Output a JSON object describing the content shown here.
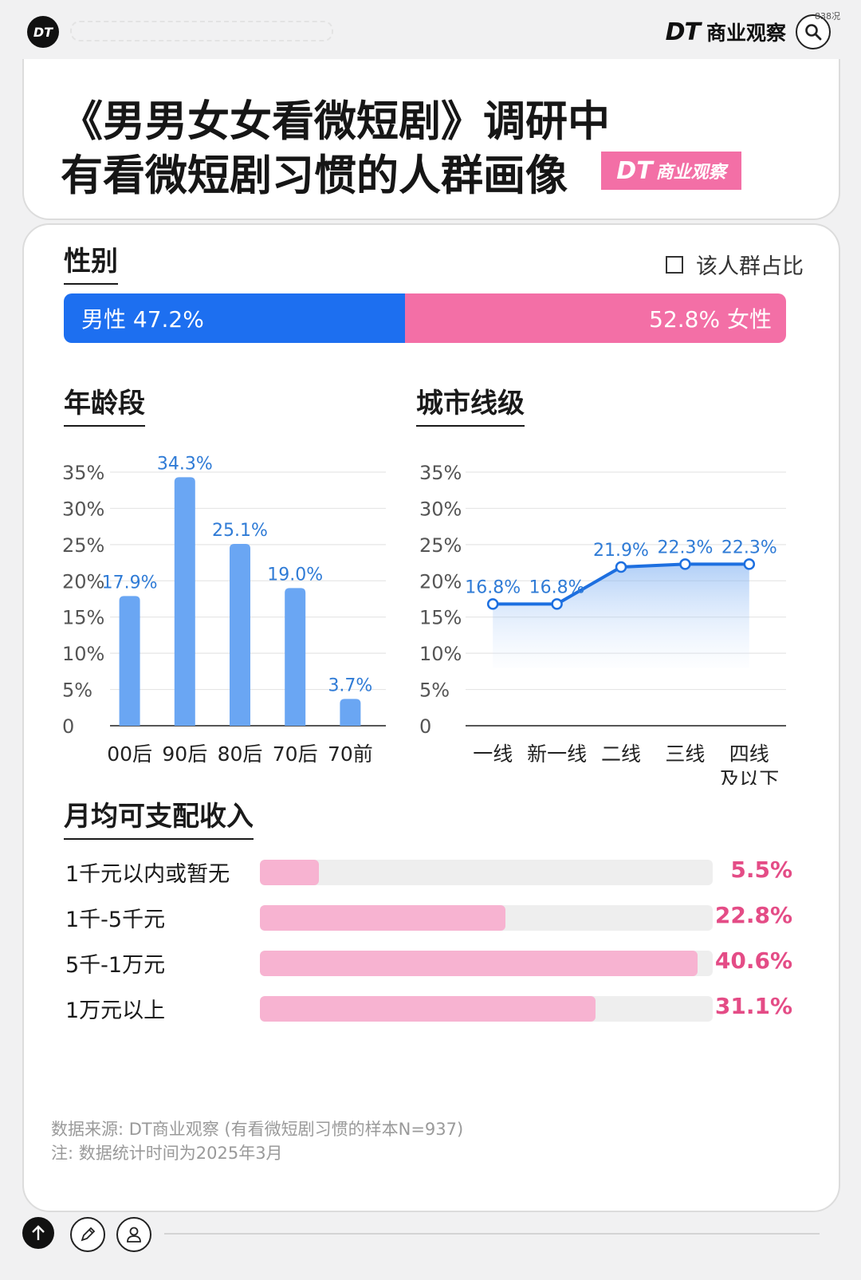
{
  "header": {
    "logo_text": "DT",
    "brand_dt": "DT",
    "brand_name": "商业观察",
    "small_mark": "838况"
  },
  "title": {
    "line1": "《男男女女看微短剧》调研中",
    "line2": "有看微短剧习惯的人群画像",
    "tag_dt": "DT",
    "tag_text": "商业观察"
  },
  "gender": {
    "section_title": "性别",
    "legend": "该人群占比",
    "male_label": "男性 47.2%",
    "female_label": "52.8% 女性",
    "male_color": "#1d6ff0",
    "female_color": "#f36fa6"
  },
  "age_section_title": "年龄段",
  "city_section_title": "城市线级",
  "income_section_title": "月均可支配收入",
  "chart_data": [
    {
      "type": "bar",
      "title": "性别",
      "categories": [
        "男性",
        "女性"
      ],
      "values": [
        47.2,
        52.8
      ],
      "value_labels": [
        "47.2%",
        "52.8%"
      ],
      "colors": [
        "#1d6ff0",
        "#f36fa6"
      ],
      "legend": "该人群占比"
    },
    {
      "type": "bar",
      "title": "年龄段",
      "categories": [
        "00后",
        "90后",
        "80后",
        "70后",
        "70前"
      ],
      "values": [
        17.9,
        34.3,
        25.1,
        19.0,
        3.7
      ],
      "value_labels": [
        "17.9%",
        "34.3%",
        "25.1%",
        "19.0%",
        "3.7%"
      ],
      "ylim": [
        0,
        35
      ],
      "yticks": [
        0,
        5,
        10,
        15,
        20,
        25,
        30,
        35
      ],
      "ytick_labels": [
        "0",
        "5%",
        "10%",
        "15%",
        "20%",
        "25%",
        "30%",
        "35%"
      ],
      "bar_color": "#6aa6f3",
      "label_color": "#2f7bd6",
      "grid": true
    },
    {
      "type": "line",
      "title": "城市线级",
      "categories": [
        "一线",
        "新一线",
        "二线",
        "三线",
        "四线及以下"
      ],
      "category_lines": [
        [
          "一线"
        ],
        [
          "新一线"
        ],
        [
          "二线"
        ],
        [
          "三线"
        ],
        [
          "四线",
          "及以下"
        ]
      ],
      "values": [
        16.8,
        16.8,
        21.9,
        22.3,
        22.3
      ],
      "value_labels": [
        "16.8%",
        "16.8%",
        "21.9%",
        "22.3%",
        "22.3%"
      ],
      "ylim": [
        0,
        35
      ],
      "yticks": [
        0,
        5,
        10,
        15,
        20,
        25,
        30,
        35
      ],
      "ytick_labels": [
        "0",
        "5%",
        "10%",
        "15%",
        "20%",
        "25%",
        "30%",
        "35%"
      ],
      "line_color": "#1d6fe0",
      "label_color": "#2f7bd6",
      "area_fill": true,
      "grid": true
    },
    {
      "type": "bar",
      "orientation": "horizontal",
      "title": "月均可支配收入",
      "categories": [
        "1千元以内或暂无",
        "1千-5千元",
        "5千-1万元",
        "1万元以上"
      ],
      "values": [
        5.5,
        22.8,
        40.6,
        31.1
      ],
      "value_labels": [
        "5.5%",
        "22.8%",
        "40.6%",
        "31.1%"
      ],
      "xlim": [
        0,
        42
      ],
      "bar_color": "#f7b3d1",
      "label_color": "#e44c86"
    }
  ],
  "source": {
    "line1": "数据来源: DT商业观察 (有看微短剧习惯的样本N=937)",
    "line2": "注: 数据统计时间为2025年3月"
  }
}
